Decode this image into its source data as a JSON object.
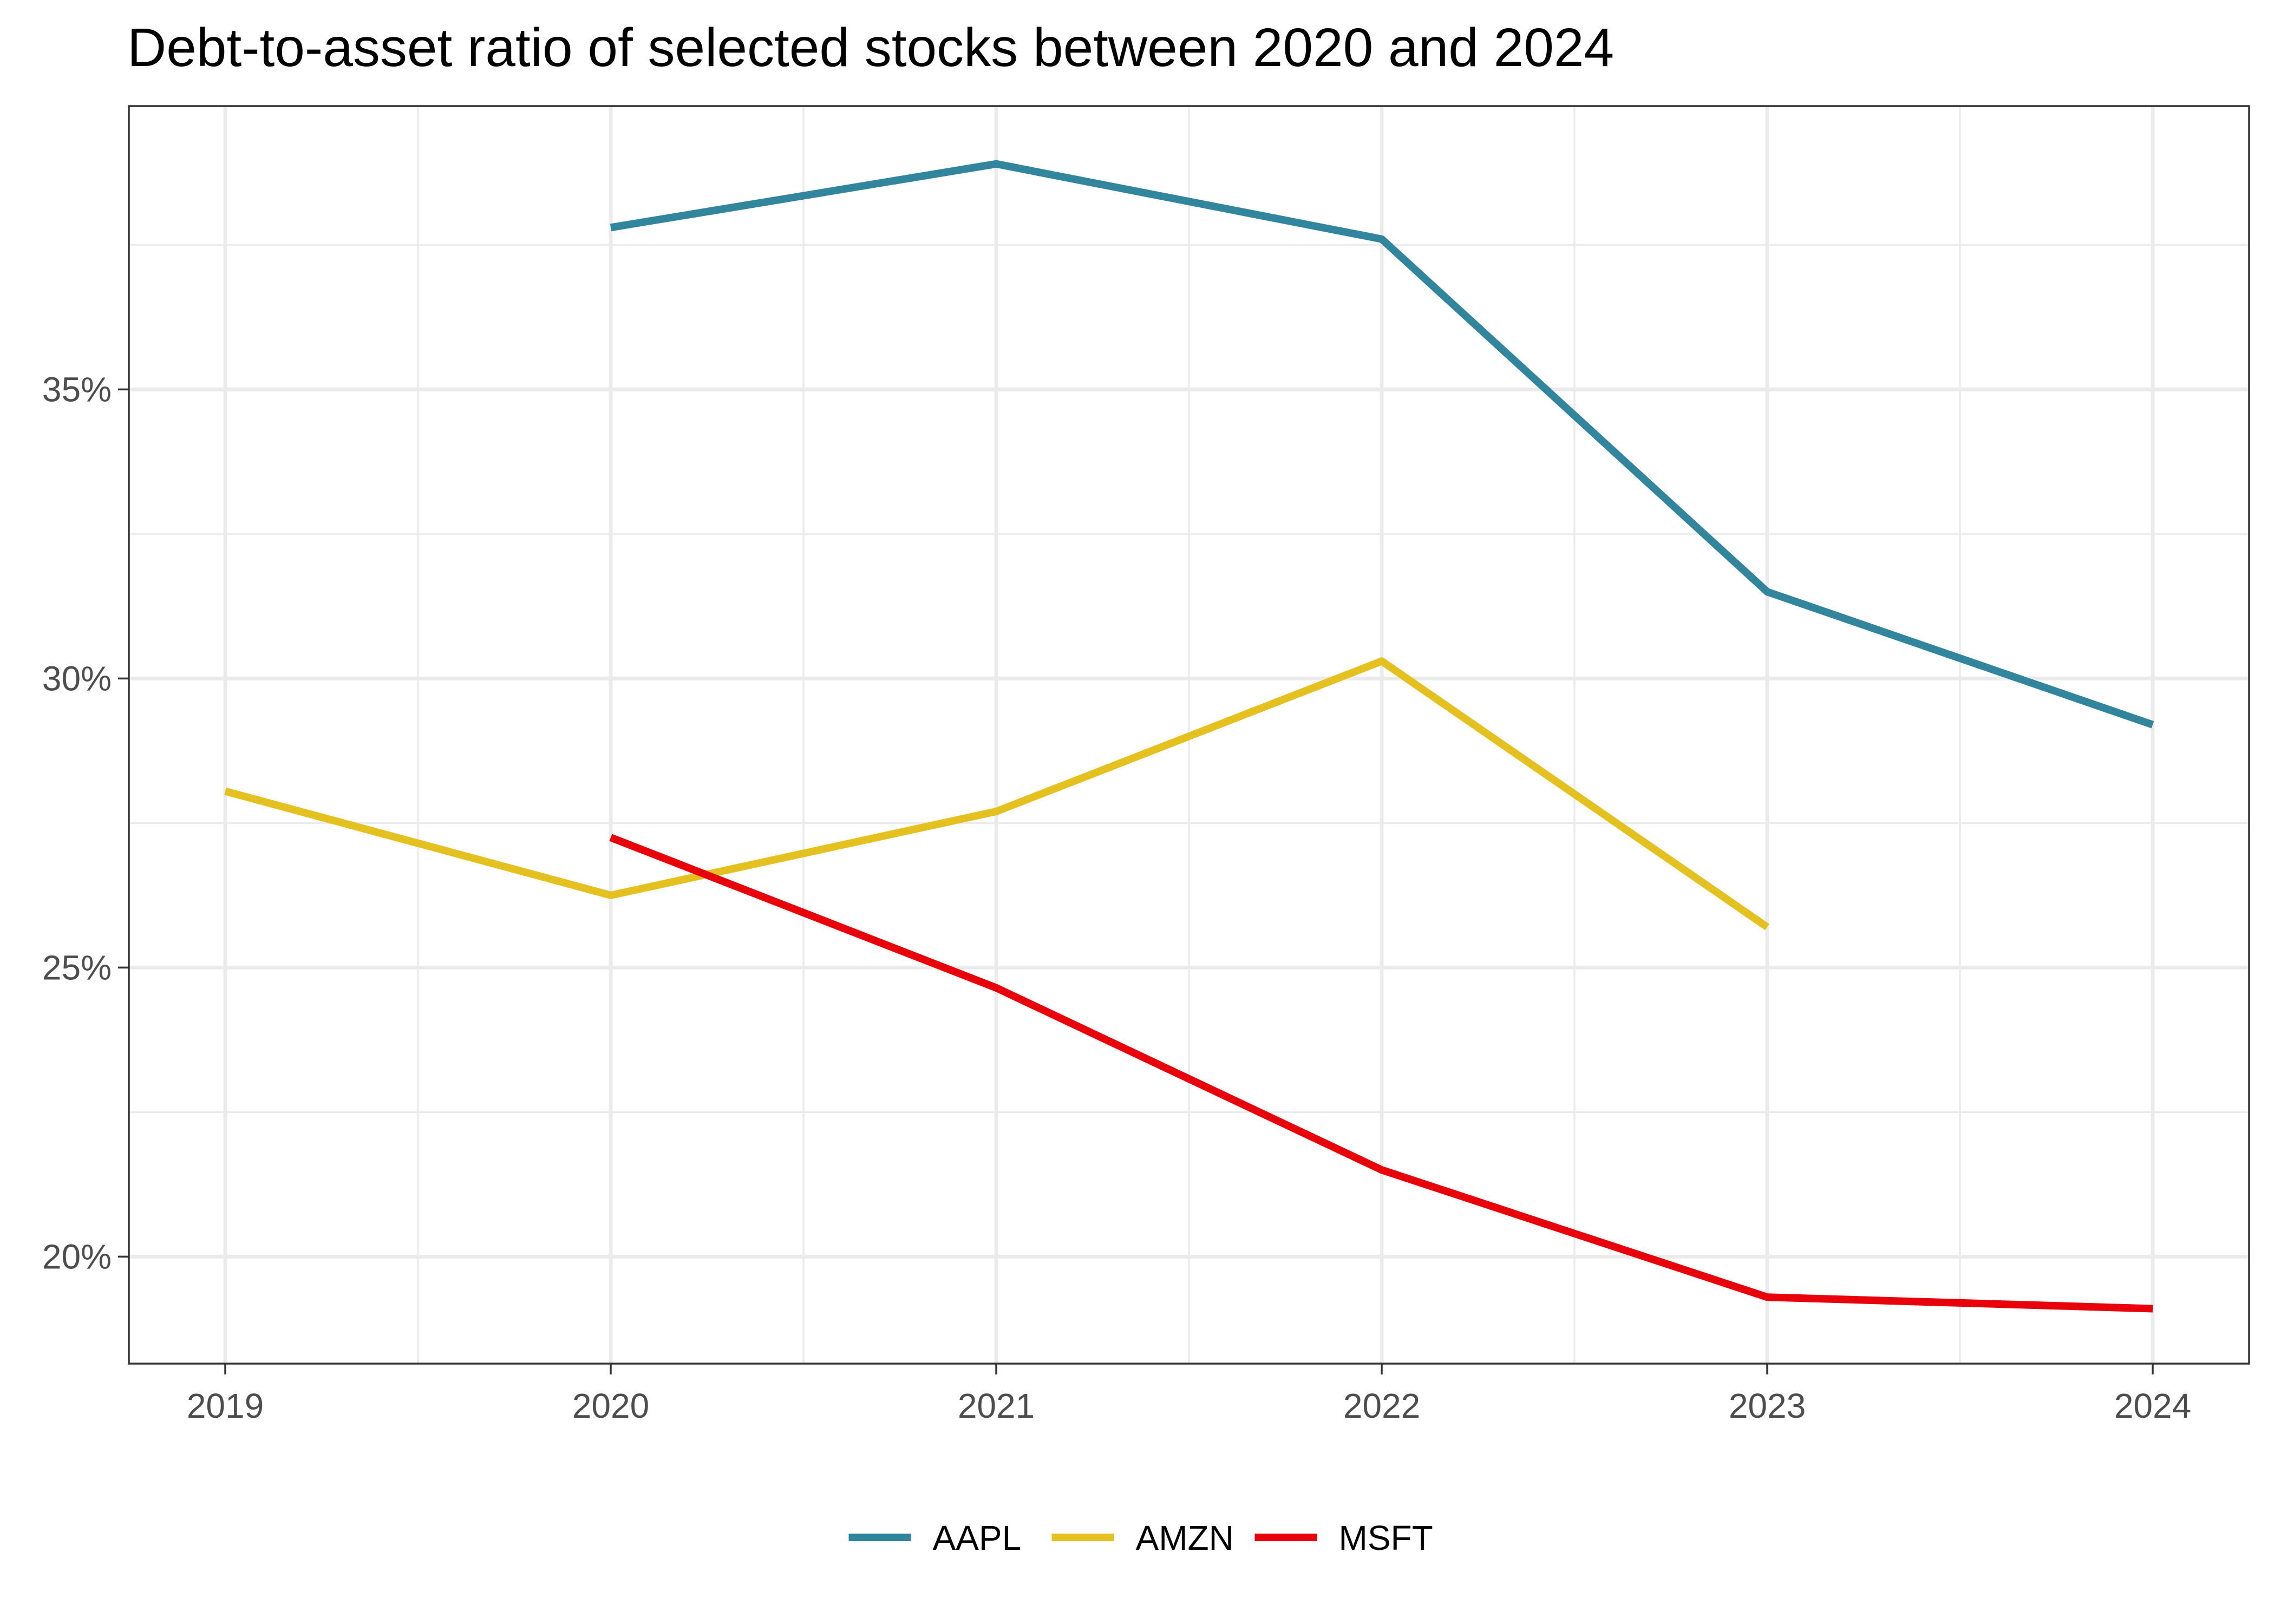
{
  "chart_data": {
    "type": "line",
    "title": "Debt-to-asset ratio of selected stocks between 2020 and 2024",
    "xlabel": "",
    "ylabel": "",
    "x_ticks": [
      "2019",
      "2020",
      "2021",
      "2022",
      "2023",
      "2024"
    ],
    "y_ticks": [
      "20%",
      "25%",
      "30%",
      "35%"
    ],
    "xlim": [
      2018.75,
      2024.25
    ],
    "ylim": [
      18.15,
      39.9
    ],
    "grid": true,
    "legend_position": "bottom",
    "series": [
      {
        "name": "AAPL",
        "color": "#31859c",
        "x": [
          2020,
          2021,
          2022,
          2023,
          2024
        ],
        "y": [
          37.8,
          38.9,
          37.6,
          31.5,
          29.2
        ]
      },
      {
        "name": "AMZN",
        "color": "#e5c11f",
        "x": [
          2019,
          2020,
          2021,
          2022,
          2023
        ],
        "y": [
          28.05,
          26.25,
          27.7,
          30.3,
          25.7
        ]
      },
      {
        "name": "MSFT",
        "color": "#e8000b",
        "x": [
          2020,
          2021,
          2022,
          2023,
          2024
        ],
        "y": [
          27.25,
          24.65,
          21.5,
          19.3,
          19.1
        ]
      }
    ]
  }
}
